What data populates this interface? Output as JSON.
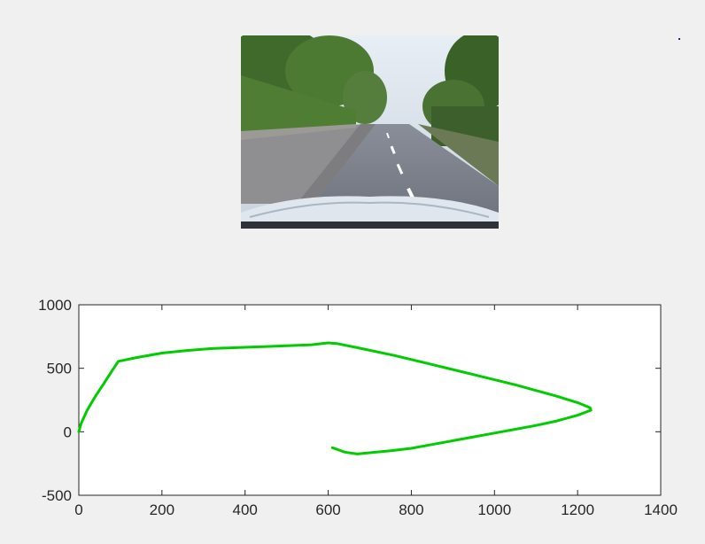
{
  "camera_view": {
    "description_icon": "dashcam-road-image"
  },
  "chart_data": {
    "type": "line",
    "title": "",
    "xlabel": "",
    "ylabel": "",
    "xlim": [
      0,
      1400
    ],
    "ylim": [
      -500,
      1000
    ],
    "x_ticks": [
      0,
      200,
      400,
      600,
      800,
      1000,
      1200,
      1400
    ],
    "y_ticks": [
      -500,
      0,
      500,
      1000
    ],
    "grid": false,
    "series": [
      {
        "color": "#00cc00",
        "x": [
          0,
          5,
          20,
          40,
          60,
          80,
          95,
          140,
          200,
          260,
          320,
          400,
          480,
          560,
          600,
          620,
          680,
          760,
          850,
          950,
          1050,
          1150,
          1200,
          1230,
          1232,
          1200,
          1150,
          1100,
          1050,
          1000,
          950,
          900,
          850,
          800,
          750,
          700,
          670,
          640,
          610
        ],
        "y": [
          0,
          60,
          170,
          280,
          380,
          480,
          555,
          585,
          620,
          640,
          655,
          665,
          675,
          685,
          700,
          695,
          655,
          600,
          530,
          450,
          370,
          280,
          230,
          190,
          170,
          130,
          85,
          50,
          20,
          -10,
          -40,
          -70,
          -100,
          -130,
          -150,
          -165,
          -175,
          -160,
          -125
        ]
      }
    ]
  },
  "colors": {
    "figure_bg": "#f0f0f0",
    "axes_bg": "#ffffff",
    "line": "#00cc00",
    "axis": "#262626"
  }
}
